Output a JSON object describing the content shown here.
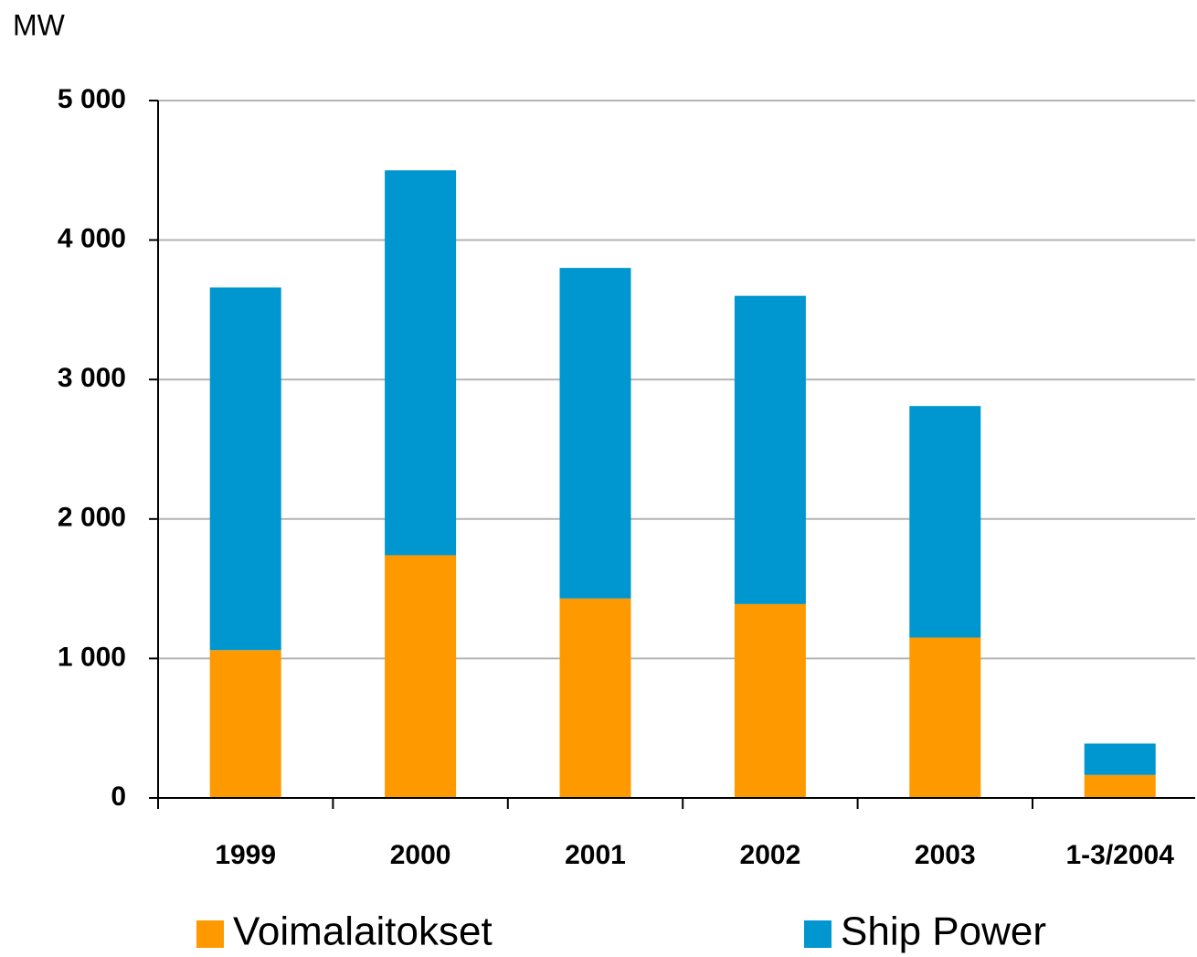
{
  "chart_data": {
    "type": "bar",
    "stacked": true,
    "y_label": "MW",
    "categories": [
      "1999",
      "2000",
      "2001",
      "2002",
      "2003",
      "1-3/2004"
    ],
    "series": [
      {
        "name": "Voimalaitokset",
        "color": "#ff9900",
        "values": [
          1060,
          1740,
          1430,
          1390,
          1150,
          165
        ]
      },
      {
        "name": "Ship Power",
        "color": "#0096d0",
        "values": [
          2600,
          2760,
          2370,
          2210,
          1660,
          225
        ]
      }
    ],
    "ylim": [
      0,
      5000
    ],
    "yticks": [
      0,
      {
        "value": 1000,
        "label": "1 000"
      },
      {
        "value": 2000,
        "label": "2 000"
      },
      {
        "value": 3000,
        "label": "3 000"
      },
      {
        "value": 4000,
        "label": "4 000"
      },
      {
        "value": 5000,
        "label": "5 000"
      }
    ],
    "grid": true
  }
}
